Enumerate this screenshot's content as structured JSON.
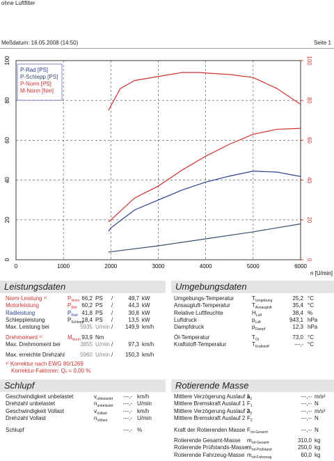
{
  "header": {
    "title": "ohne Luftfilter",
    "date": "Meßdatum: 16.05.2008 (14:50)",
    "page": "Seite 1"
  },
  "chart_data": {
    "type": "line",
    "x_label": "n [U/min]",
    "xlim": [
      0,
      6000
    ],
    "xticks": [
      0,
      1000,
      2000,
      3000,
      4000,
      5000,
      6000
    ],
    "ylim": [
      0,
      100
    ],
    "yticks": [
      0,
      20,
      40,
      60,
      80,
      100
    ],
    "y2lim": [
      0,
      100
    ],
    "y2ticks": [
      0,
      20,
      40,
      60,
      80,
      100
    ],
    "grid": true,
    "legend": "top-left",
    "series": [
      {
        "name": "P-Rad [PS]",
        "color": "#2a3f8f",
        "x": [
          1950,
          2000,
          2500,
          3000,
          3500,
          4000,
          4500,
          5000,
          5500,
          6000
        ],
        "values": [
          14.3,
          16,
          25,
          30,
          35,
          39,
          42,
          44.5,
          44,
          41.8
        ]
      },
      {
        "name": "P-Schlepp [PS]",
        "color": "#3a4a6a",
        "x": [
          1950,
          2000,
          3000,
          4000,
          5000,
          6000
        ],
        "values": [
          3.8,
          4,
          7,
          10.5,
          14,
          18
        ]
      },
      {
        "name": "P-Norm [PS]",
        "color": "#d03030",
        "x": [
          1950,
          2000,
          2500,
          3000,
          3500,
          4000,
          4500,
          5000,
          5500,
          6000
        ],
        "values": [
          19,
          20,
          31,
          37,
          45,
          52,
          58,
          63,
          65.5,
          66
        ]
      },
      {
        "name": "M-Norm [Nm]",
        "color": "#d03030",
        "axis": "y2",
        "x": [
          1950,
          2200,
          2500,
          3000,
          3500,
          3855,
          4500,
          5000,
          5500,
          6000
        ],
        "values": [
          75,
          86,
          90,
          92,
          94,
          94,
          93,
          91.5,
          86,
          78
        ]
      }
    ]
  },
  "leistung": {
    "title": "Leistungsdaten",
    "rows": [
      {
        "label": "Norm-Leistung ¹⁾",
        "sym": "P",
        "sub": "Norm",
        "value": "66,2",
        "unit": "PS",
        "sep": "/",
        "value2": "48,7",
        "unit2": "kW"
      },
      {
        "label": "Motorleistung",
        "sym": "P",
        "sub": "Mot",
        "value": "60,2",
        "unit": "PS",
        "sep": "/",
        "value2": "44,3",
        "unit2": "kW"
      },
      {
        "label": "Radleistung",
        "sym": "P",
        "sub": "Rad",
        "value": "41,8",
        "unit": "PS",
        "sep": "/",
        "value2": "30,8",
        "unit2": "kW"
      },
      {
        "label": "Schleppleistung",
        "sym": "P",
        "sub": "Schlepp",
        "value": "18,4",
        "unit": "PS",
        "sep": "/",
        "value2": "13,5",
        "unit2": "kW"
      },
      {
        "label": "Max. Leistung bei",
        "value": "5935",
        "unit": "U/min",
        "sep": "/",
        "value2": "149,9",
        "unit2": "km/h"
      },
      {
        "label": "Drehmoment ¹⁾",
        "sym": "M",
        "sub": "Norm",
        "value": "93,9",
        "unit": "Nm"
      },
      {
        "label": "Max. Drehmoment bei",
        "value": "3855",
        "unit": "U/min",
        "sep": "/",
        "value2": "97,3",
        "unit2": "km/h"
      },
      {
        "label": "Max. erreichte Drehzahl",
        "value": "5960",
        "unit": "U/min",
        "sep": "/",
        "value2": "150,3",
        "unit2": "km/h"
      }
    ],
    "notes": [
      "¹⁾ Korrektur nach EWG 80/1269",
      "Korrektur-Faktoren: Qᵥ =  0,00 %"
    ]
  },
  "umgebung": {
    "title": "Umgebungsdaten",
    "rows": [
      {
        "label": "Umgebungs-Temperatur",
        "sym": "T",
        "sub": "Umgebung",
        "value": "25,2",
        "unit": "°C"
      },
      {
        "label": "Ansaugluft-Temperatur",
        "sym": "T",
        "sub": "Ansaugluft",
        "value": "35,4",
        "unit": "°C"
      },
      {
        "label": "Relative Luftfeuchte",
        "sym": "H",
        "sub": "Luft",
        "value": "38,4",
        "unit": "%"
      },
      {
        "label": "Luftdruck",
        "sym": "p",
        "sub": "Luft",
        "value": "943,1",
        "unit": "hPa"
      },
      {
        "label": "Dampfdruck",
        "sym": "p",
        "sub": "Dampf",
        "value": "12,3",
        "unit": "hPa"
      },
      {
        "label": "Öl-Temperatur",
        "sym": "T",
        "sub": "Öl",
        "value": "73,0",
        "unit": "°C"
      },
      {
        "label": "Kraftstoff-Temperatur",
        "sym": "T",
        "sub": "Kraftstoff",
        "value": "---,-",
        "unit": "°C"
      }
    ]
  },
  "schlupf": {
    "title": "Schlupf",
    "rows": [
      {
        "label": "Geschwindigkeit unbelastet",
        "sym": "v",
        "sub": "unbelastet",
        "value": "---,-",
        "unit": "km/h"
      },
      {
        "label": "Drehzahl unbelastet",
        "sym": "n",
        "sub": "unbelastet",
        "value": "---,-",
        "unit": "U/min"
      },
      {
        "label": "Geschwindigkeit Vollast",
        "sym": "v",
        "sub": "Vollast",
        "value": "---,-",
        "unit": "km/h"
      },
      {
        "label": "Drehzahl Vollast",
        "sym": "n",
        "sub": "Vollast",
        "value": "---,-",
        "unit": "U/min"
      },
      {
        "label": "Schlupf",
        "value": "---,-",
        "unit": "%"
      }
    ]
  },
  "masse": {
    "title": "Rotierende Masse",
    "rows": [
      {
        "label": "Mittlere Verzögerung Auslauf 1",
        "sym": "a",
        "sub": "1",
        "value": "---,--",
        "unit": "m/s²"
      },
      {
        "label": "Mittlere Bremskraft Auslauf 1",
        "sym": "F",
        "sub": "1",
        "value": "---,--",
        "unit": "N"
      },
      {
        "label": "Mittlere Verzögerung Auslauf 2",
        "sym": "a",
        "sub": "2",
        "value": "---,--",
        "unit": "m/s²"
      },
      {
        "label": "Mittlere Bremskraft Auslauf 2",
        "sym": "F",
        "sub": "2",
        "value": "---,--",
        "unit": "N"
      },
      {
        "label": "Kraft der Rotierenden Masse",
        "sym": "F",
        "sub": "rot-Gesamt",
        "value": "---,--",
        "unit": "N"
      },
      {
        "label": "Rotierende Gesamt-Masse",
        "sym": "m",
        "sub": "rot-Gesamt",
        "value": "310,0",
        "unit": "kg"
      },
      {
        "label": "Rotierende Prüfstands-Masse",
        "sym": "m",
        "sub": "rot-Prüfstand",
        "value": "250,0",
        "unit": "kg"
      },
      {
        "label": "Rotierende Fahrzeug-Masse",
        "sym": "m",
        "sub": "rot-Fahrzeug",
        "value": "60,0",
        "unit": "kg"
      }
    ]
  }
}
